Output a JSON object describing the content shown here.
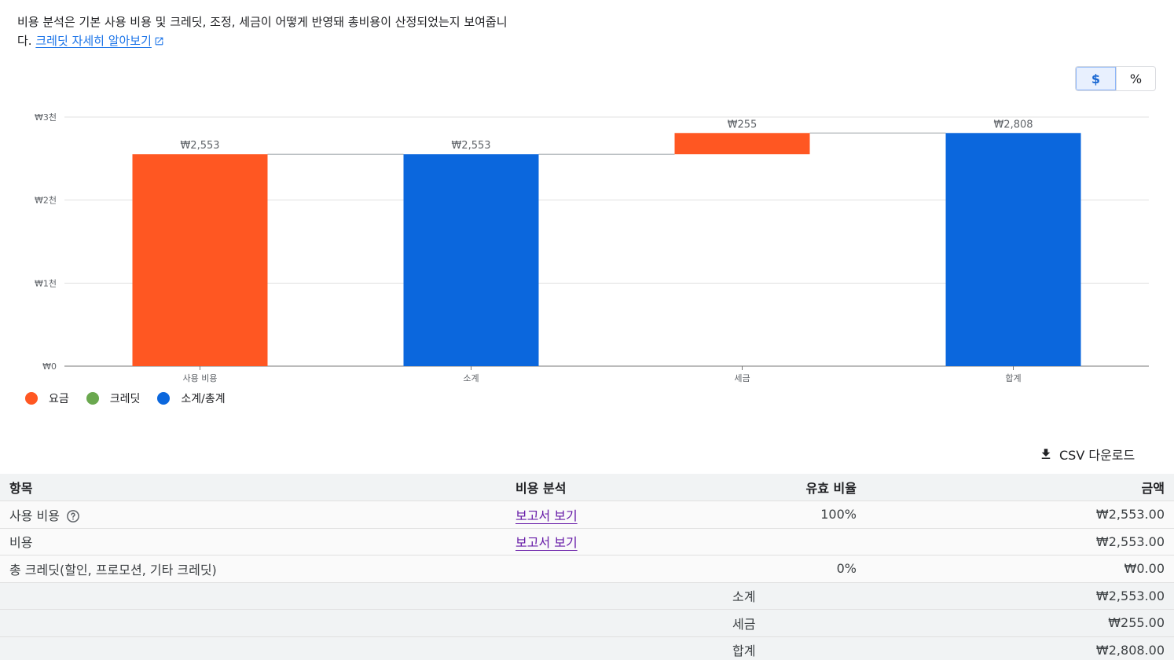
{
  "intro": {
    "text": "비용 분석은 기본 사용 비용 및 크레딧, 조정, 세금이 어떻게 반영돼 총비용이 산정되었는지 보여줍니다.",
    "link_label": "크레딧 자세히 알아보기"
  },
  "toggle": {
    "dollar_label": "$",
    "percent_label": "%",
    "selected": "$"
  },
  "colors": {
    "charge": "#ff5722",
    "credit": "#6aa84f",
    "subtotal": "#0b67dd"
  },
  "chart_data": {
    "type": "bar",
    "subtype": "waterfall",
    "categories": [
      "사용 비용",
      "소계",
      "세금",
      "합계"
    ],
    "series": [
      {
        "name": "요금",
        "values": [
          2553,
          null,
          255,
          null
        ]
      },
      {
        "name": "크레딧",
        "values": [
          null,
          null,
          null,
          null
        ]
      },
      {
        "name": "소계/총계",
        "values": [
          null,
          2553,
          null,
          2808
        ]
      }
    ],
    "bars": [
      {
        "category": "사용 비용",
        "start": 0,
        "end": 2553,
        "label": "₩2,553",
        "kind": "charge"
      },
      {
        "category": "소계",
        "start": 0,
        "end": 2553,
        "label": "₩2,553",
        "kind": "subtotal"
      },
      {
        "category": "세금",
        "start": 2553,
        "end": 2808,
        "label": "₩255",
        "kind": "charge"
      },
      {
        "category": "합계",
        "start": 0,
        "end": 2808,
        "label": "₩2,808",
        "kind": "subtotal"
      }
    ],
    "ylim": [
      0,
      3000
    ],
    "yticks": [
      {
        "value": 0,
        "label": "₩0"
      },
      {
        "value": 1000,
        "label": "₩1천"
      },
      {
        "value": 2000,
        "label": "₩2천"
      },
      {
        "value": 3000,
        "label": "₩3천"
      }
    ],
    "grid": true,
    "legend_position": "bottom-left",
    "legend": [
      {
        "label": "요금",
        "kind": "charge"
      },
      {
        "label": "크레딧",
        "kind": "credit"
      },
      {
        "label": "소계/총계",
        "kind": "subtotal"
      }
    ]
  },
  "csv_label": "CSV 다운로드",
  "table": {
    "headers": {
      "item": "항목",
      "report": "비용 분석",
      "rate": "유효 비율",
      "amount": "금액"
    },
    "rows": [
      {
        "item": "사용 비용",
        "report": "보고서 보기",
        "rate": "100%",
        "amount": "₩2,553.00"
      },
      {
        "item": "비용",
        "report": "보고서 보기",
        "rate": "",
        "amount": "₩2,553.00"
      },
      {
        "item": "총 크레딧(할인, 프로모션, 기타 크레딧)",
        "report": "",
        "rate": "0%",
        "amount": "₩0.00"
      }
    ],
    "summary": [
      {
        "label": "소계",
        "amount": "₩2,553.00"
      },
      {
        "label": "세금",
        "amount": "₩255.00"
      },
      {
        "label": "합계",
        "amount": "₩2,808.00"
      }
    ]
  }
}
